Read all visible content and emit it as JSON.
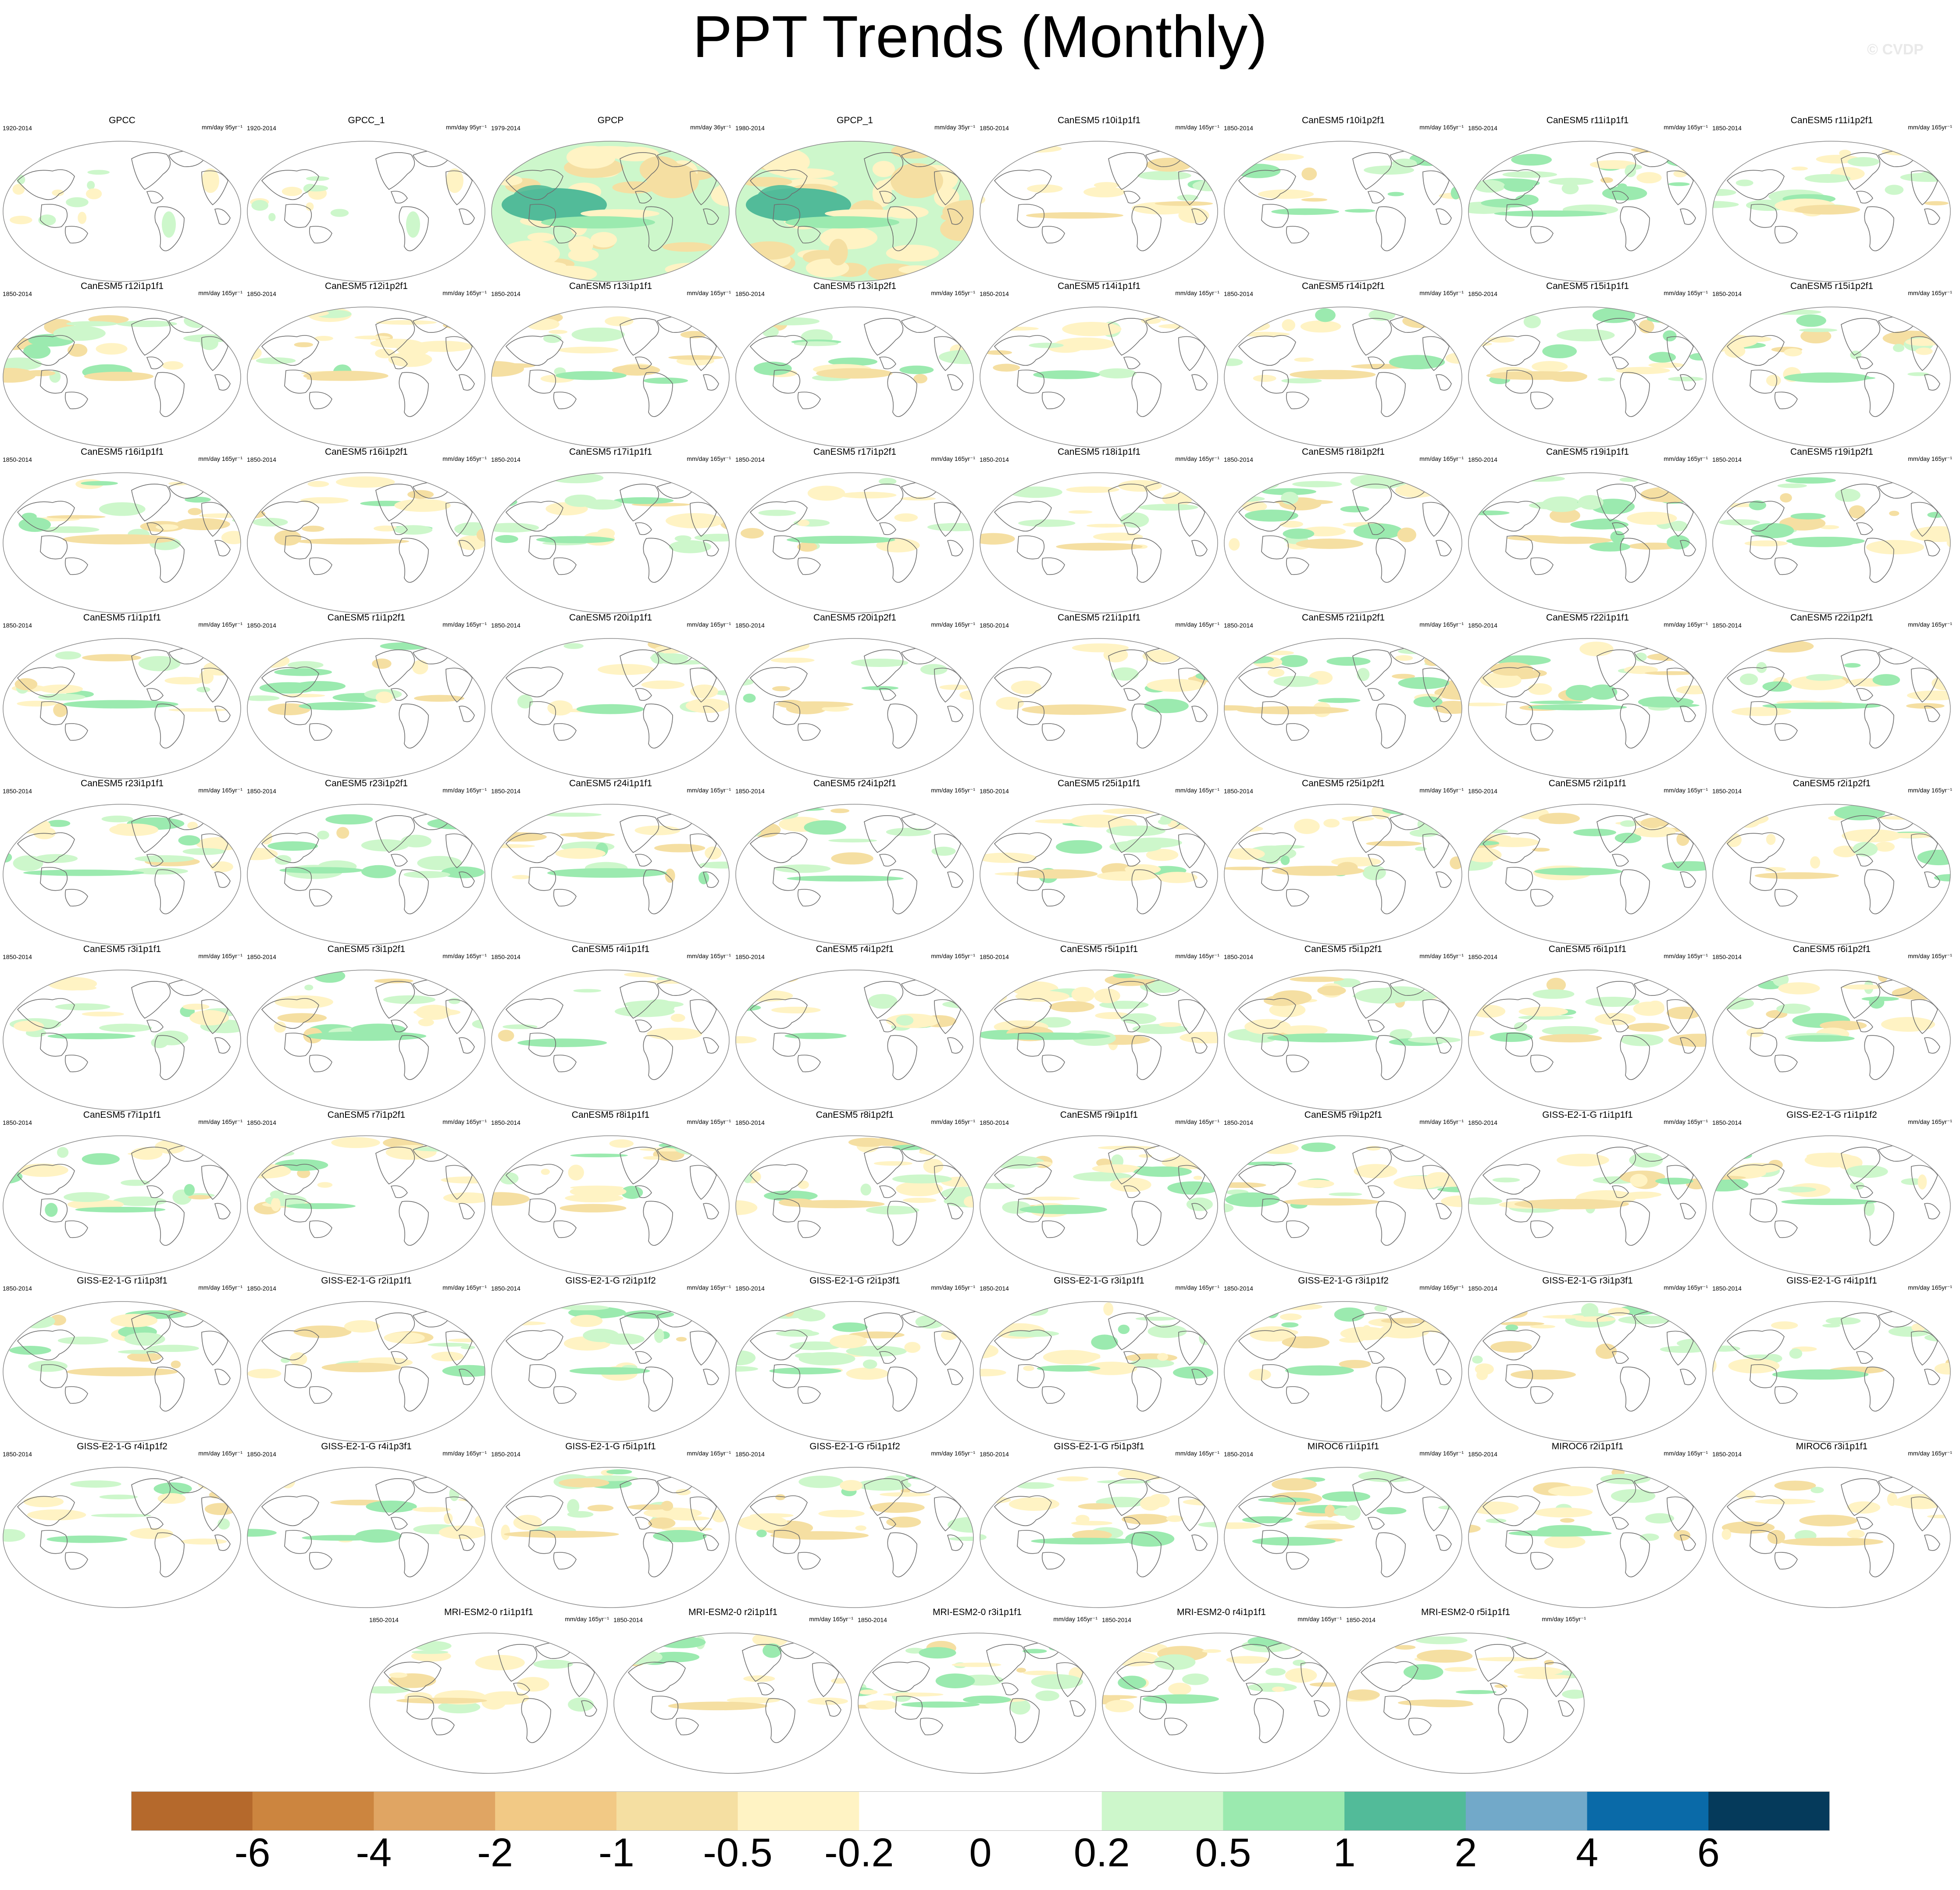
{
  "title": "PPT Trends (Monthly)",
  "watermark": "© CVDP",
  "chart_data": {
    "type": "heatmap",
    "title": "PPT Trends (Monthly)",
    "colorbar": {
      "levels": [
        -6,
        -4,
        -2,
        -1,
        -0.5,
        -0.2,
        0,
        0.2,
        0.5,
        1,
        2,
        4,
        6
      ],
      "labels": [
        "-6",
        "-4",
        "-2",
        "-1",
        "-0.5",
        "-0.2",
        "0",
        "0.2",
        "0.5",
        "1",
        "2",
        "4",
        "6"
      ],
      "colors": [
        "#b5692c",
        "#cc853f",
        "#e0a563",
        "#f2c985",
        "#f5dfa2",
        "#fff3c4",
        "#ffffff",
        "#ffffff",
        "#cdf7cb",
        "#9beaaf",
        "#52bb99",
        "#72a9c9",
        "#0a6aa8",
        "#053a5b"
      ]
    },
    "panels": [
      {
        "name": "GPCC",
        "period": "1920-2014",
        "units": "mm/day 95yr⁻¹",
        "pattern": "obs-land"
      },
      {
        "name": "GPCC_1",
        "period": "1920-2014",
        "units": "mm/day 95yr⁻¹",
        "pattern": "obs-land"
      },
      {
        "name": "GPCP",
        "period": "1979-2014",
        "units": "mm/day 36yr⁻¹",
        "pattern": "obs-full"
      },
      {
        "name": "GPCP_1",
        "period": "1980-2014",
        "units": "mm/day 35yr⁻¹",
        "pattern": "obs-full"
      },
      {
        "name": "CanESM5 r10i1p1f1",
        "period": "1850-2014",
        "units": "mm/day 165yr⁻¹"
      },
      {
        "name": "CanESM5 r10i1p2f1",
        "period": "1850-2014",
        "units": "mm/day 165yr⁻¹"
      },
      {
        "name": "CanESM5 r11i1p1f1",
        "period": "1850-2014",
        "units": "mm/day 165yr⁻¹"
      },
      {
        "name": "CanESM5 r11i1p2f1",
        "period": "1850-2014",
        "units": "mm/day 165yr⁻¹"
      },
      {
        "name": "CanESM5 r12i1p1f1",
        "period": "1850-2014",
        "units": "mm/day 165yr⁻¹"
      },
      {
        "name": "CanESM5 r12i1p2f1",
        "period": "1850-2014",
        "units": "mm/day 165yr⁻¹"
      },
      {
        "name": "CanESM5 r13i1p1f1",
        "period": "1850-2014",
        "units": "mm/day 165yr⁻¹"
      },
      {
        "name": "CanESM5 r13i1p2f1",
        "period": "1850-2014",
        "units": "mm/day 165yr⁻¹"
      },
      {
        "name": "CanESM5 r14i1p1f1",
        "period": "1850-2014",
        "units": "mm/day 165yr⁻¹"
      },
      {
        "name": "CanESM5 r14i1p2f1",
        "period": "1850-2014",
        "units": "mm/day 165yr⁻¹"
      },
      {
        "name": "CanESM5 r15i1p1f1",
        "period": "1850-2014",
        "units": "mm/day 165yr⁻¹"
      },
      {
        "name": "CanESM5 r15i1p2f1",
        "period": "1850-2014",
        "units": "mm/day 165yr⁻¹"
      },
      {
        "name": "CanESM5 r16i1p1f1",
        "period": "1850-2014",
        "units": "mm/day 165yr⁻¹"
      },
      {
        "name": "CanESM5 r16i1p2f1",
        "period": "1850-2014",
        "units": "mm/day 165yr⁻¹"
      },
      {
        "name": "CanESM5 r17i1p1f1",
        "period": "1850-2014",
        "units": "mm/day 165yr⁻¹"
      },
      {
        "name": "CanESM5 r17i1p2f1",
        "period": "1850-2014",
        "units": "mm/day 165yr⁻¹"
      },
      {
        "name": "CanESM5 r18i1p1f1",
        "period": "1850-2014",
        "units": "mm/day 165yr⁻¹"
      },
      {
        "name": "CanESM5 r18i1p2f1",
        "period": "1850-2014",
        "units": "mm/day 165yr⁻¹"
      },
      {
        "name": "CanESM5 r19i1p1f1",
        "period": "1850-2014",
        "units": "mm/day 165yr⁻¹"
      },
      {
        "name": "CanESM5 r19i1p2f1",
        "period": "1850-2014",
        "units": "mm/day 165yr⁻¹"
      },
      {
        "name": "CanESM5 r1i1p1f1",
        "period": "1850-2014",
        "units": "mm/day 165yr⁻¹"
      },
      {
        "name": "CanESM5 r1i1p2f1",
        "period": "1850-2014",
        "units": "mm/day 165yr⁻¹"
      },
      {
        "name": "CanESM5 r20i1p1f1",
        "period": "1850-2014",
        "units": "mm/day 165yr⁻¹"
      },
      {
        "name": "CanESM5 r20i1p2f1",
        "period": "1850-2014",
        "units": "mm/day 165yr⁻¹"
      },
      {
        "name": "CanESM5 r21i1p1f1",
        "period": "1850-2014",
        "units": "mm/day 165yr⁻¹"
      },
      {
        "name": "CanESM5 r21i1p2f1",
        "period": "1850-2014",
        "units": "mm/day 165yr⁻¹"
      },
      {
        "name": "CanESM5 r22i1p1f1",
        "period": "1850-2014",
        "units": "mm/day 165yr⁻¹"
      },
      {
        "name": "CanESM5 r22i1p2f1",
        "period": "1850-2014",
        "units": "mm/day 165yr⁻¹"
      },
      {
        "name": "CanESM5 r23i1p1f1",
        "period": "1850-2014",
        "units": "mm/day 165yr⁻¹"
      },
      {
        "name": "CanESM5 r23i1p2f1",
        "period": "1850-2014",
        "units": "mm/day 165yr⁻¹"
      },
      {
        "name": "CanESM5 r24i1p1f1",
        "period": "1850-2014",
        "units": "mm/day 165yr⁻¹"
      },
      {
        "name": "CanESM5 r24i1p2f1",
        "period": "1850-2014",
        "units": "mm/day 165yr⁻¹"
      },
      {
        "name": "CanESM5 r25i1p1f1",
        "period": "1850-2014",
        "units": "mm/day 165yr⁻¹"
      },
      {
        "name": "CanESM5 r25i1p2f1",
        "period": "1850-2014",
        "units": "mm/day 165yr⁻¹"
      },
      {
        "name": "CanESM5 r2i1p1f1",
        "period": "1850-2014",
        "units": "mm/day 165yr⁻¹"
      },
      {
        "name": "CanESM5 r2i1p2f1",
        "period": "1850-2014",
        "units": "mm/day 165yr⁻¹"
      },
      {
        "name": "CanESM5 r3i1p1f1",
        "period": "1850-2014",
        "units": "mm/day 165yr⁻¹"
      },
      {
        "name": "CanESM5 r3i1p2f1",
        "period": "1850-2014",
        "units": "mm/day 165yr⁻¹"
      },
      {
        "name": "CanESM5 r4i1p1f1",
        "period": "1850-2014",
        "units": "mm/day 165yr⁻¹"
      },
      {
        "name": "CanESM5 r4i1p2f1",
        "period": "1850-2014",
        "units": "mm/day 165yr⁻¹"
      },
      {
        "name": "CanESM5 r5i1p1f1",
        "period": "1850-2014",
        "units": "mm/day 165yr⁻¹"
      },
      {
        "name": "CanESM5 r5i1p2f1",
        "period": "1850-2014",
        "units": "mm/day 165yr⁻¹"
      },
      {
        "name": "CanESM5 r6i1p1f1",
        "period": "1850-2014",
        "units": "mm/day 165yr⁻¹"
      },
      {
        "name": "CanESM5 r6i1p2f1",
        "period": "1850-2014",
        "units": "mm/day 165yr⁻¹"
      },
      {
        "name": "CanESM5 r7i1p1f1",
        "period": "1850-2014",
        "units": "mm/day 165yr⁻¹"
      },
      {
        "name": "CanESM5 r7i1p2f1",
        "period": "1850-2014",
        "units": "mm/day 165yr⁻¹"
      },
      {
        "name": "CanESM5 r8i1p1f1",
        "period": "1850-2014",
        "units": "mm/day 165yr⁻¹"
      },
      {
        "name": "CanESM5 r8i1p2f1",
        "period": "1850-2014",
        "units": "mm/day 165yr⁻¹"
      },
      {
        "name": "CanESM5 r9i1p1f1",
        "period": "1850-2014",
        "units": "mm/day 165yr⁻¹"
      },
      {
        "name": "CanESM5 r9i1p2f1",
        "period": "1850-2014",
        "units": "mm/day 165yr⁻¹"
      },
      {
        "name": "GISS-E2-1-G r1i1p1f1",
        "period": "1850-2014",
        "units": "mm/day 165yr⁻¹"
      },
      {
        "name": "GISS-E2-1-G r1i1p1f2",
        "period": "1850-2014",
        "units": "mm/day 165yr⁻¹"
      },
      {
        "name": "GISS-E2-1-G r1i1p3f1",
        "period": "1850-2014",
        "units": "mm/day 165yr⁻¹"
      },
      {
        "name": "GISS-E2-1-G r2i1p1f1",
        "period": "1850-2014",
        "units": "mm/day 165yr⁻¹"
      },
      {
        "name": "GISS-E2-1-G r2i1p1f2",
        "period": "1850-2014",
        "units": "mm/day 165yr⁻¹"
      },
      {
        "name": "GISS-E2-1-G r2i1p3f1",
        "period": "1850-2014",
        "units": "mm/day 165yr⁻¹"
      },
      {
        "name": "GISS-E2-1-G r3i1p1f1",
        "period": "1850-2014",
        "units": "mm/day 165yr⁻¹"
      },
      {
        "name": "GISS-E2-1-G r3i1p1f2",
        "period": "1850-2014",
        "units": "mm/day 165yr⁻¹"
      },
      {
        "name": "GISS-E2-1-G r3i1p3f1",
        "period": "1850-2014",
        "units": "mm/day 165yr⁻¹"
      },
      {
        "name": "GISS-E2-1-G r4i1p1f1",
        "period": "1850-2014",
        "units": "mm/day 165yr⁻¹"
      },
      {
        "name": "GISS-E2-1-G r4i1p1f2",
        "period": "1850-2014",
        "units": "mm/day 165yr⁻¹"
      },
      {
        "name": "GISS-E2-1-G r4i1p3f1",
        "period": "1850-2014",
        "units": "mm/day 165yr⁻¹"
      },
      {
        "name": "GISS-E2-1-G r5i1p1f1",
        "period": "1850-2014",
        "units": "mm/day 165yr⁻¹"
      },
      {
        "name": "GISS-E2-1-G r5i1p1f2",
        "period": "1850-2014",
        "units": "mm/day 165yr⁻¹"
      },
      {
        "name": "GISS-E2-1-G r5i1p3f1",
        "period": "1850-2014",
        "units": "mm/day 165yr⁻¹"
      },
      {
        "name": "MIROC6 r1i1p1f1",
        "period": "1850-2014",
        "units": "mm/day 165yr⁻¹"
      },
      {
        "name": "MIROC6 r2i1p1f1",
        "period": "1850-2014",
        "units": "mm/day 165yr⁻¹"
      },
      {
        "name": "MIROC6 r3i1p1f1",
        "period": "1850-2014",
        "units": "mm/day 165yr⁻¹"
      },
      {
        "name": "MRI-ESM2-0 r1i1p1f1",
        "period": "1850-2014",
        "units": "mm/day 165yr⁻¹"
      },
      {
        "name": "MRI-ESM2-0 r2i1p1f1",
        "period": "1850-2014",
        "units": "mm/day 165yr⁻¹"
      },
      {
        "name": "MRI-ESM2-0 r3i1p1f1",
        "period": "1850-2014",
        "units": "mm/day 165yr⁻¹"
      },
      {
        "name": "MRI-ESM2-0 r4i1p1f1",
        "period": "1850-2014",
        "units": "mm/day 165yr⁻¹"
      },
      {
        "name": "MRI-ESM2-0 r5i1p1f1",
        "period": "1850-2014",
        "units": "mm/day 165yr⁻¹"
      }
    ]
  }
}
